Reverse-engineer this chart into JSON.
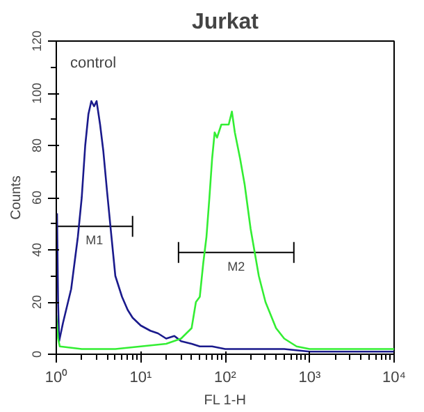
{
  "chart_data": {
    "type": "line",
    "title": "Jurkat",
    "xlabel": "FL 1-H",
    "ylabel": "Counts",
    "log": "x",
    "grid": false,
    "xlim": [
      1,
      10000
    ],
    "ylim": [
      0,
      120
    ],
    "xticks": [
      {
        "value": 1,
        "label": "10⁰"
      },
      {
        "value": 10,
        "label": "10¹"
      },
      {
        "value": 100,
        "label": "10²"
      },
      {
        "value": 1000,
        "label": "10³"
      },
      {
        "value": 10000,
        "label": "10⁴"
      }
    ],
    "yticks": [
      0,
      20,
      40,
      60,
      80,
      100,
      120
    ],
    "annotations": [
      "control"
    ],
    "series": [
      {
        "name": "M1",
        "color": "#000000",
        "x": [
          1,
          8
        ],
        "values": [
          49,
          49
        ],
        "errors": [
          null,
          4
        ]
      },
      {
        "name": "M2",
        "color": "#000000",
        "x": [
          28,
          650
        ],
        "values": [
          39,
          39
        ],
        "errors": [
          4,
          4
        ]
      },
      {
        "color": "#1a1a8c",
        "x": [
          1.02,
          1.05,
          1.08,
          1.2,
          1.5,
          1.8,
          2.0,
          2.2,
          2.4,
          2.6,
          2.8,
          3.0,
          3.3,
          3.6,
          4.0,
          4.5,
          5.0,
          6,
          7,
          8,
          10,
          13,
          16,
          20,
          25,
          30,
          40,
          50,
          70,
          100,
          200,
          500,
          1000,
          5000,
          10000
        ],
        "values": [
          54,
          20,
          5,
          12,
          25,
          45,
          60,
          80,
          92,
          97,
          95,
          97,
          88,
          78,
          62,
          45,
          30,
          22,
          17,
          14,
          11,
          9,
          8,
          6,
          7,
          5,
          4,
          3,
          3,
          2,
          2,
          2,
          1,
          1,
          1
        ]
      },
      {
        "color": "#33ee33",
        "x": [
          1.0,
          1.05,
          1.1,
          2,
          5,
          10,
          20,
          30,
          40,
          45,
          50,
          55,
          60,
          65,
          70,
          75,
          80,
          90,
          100,
          110,
          120,
          130,
          150,
          170,
          200,
          250,
          300,
          400,
          500,
          700,
          1000,
          2000,
          5000,
          10000
        ],
        "values": [
          15,
          6,
          3,
          2,
          2,
          3,
          4,
          6,
          10,
          20,
          22,
          35,
          45,
          60,
          75,
          85,
          83,
          88,
          88,
          88,
          93,
          85,
          75,
          65,
          48,
          30,
          20,
          10,
          6,
          3,
          2,
          2,
          2,
          2
        ]
      }
    ]
  }
}
